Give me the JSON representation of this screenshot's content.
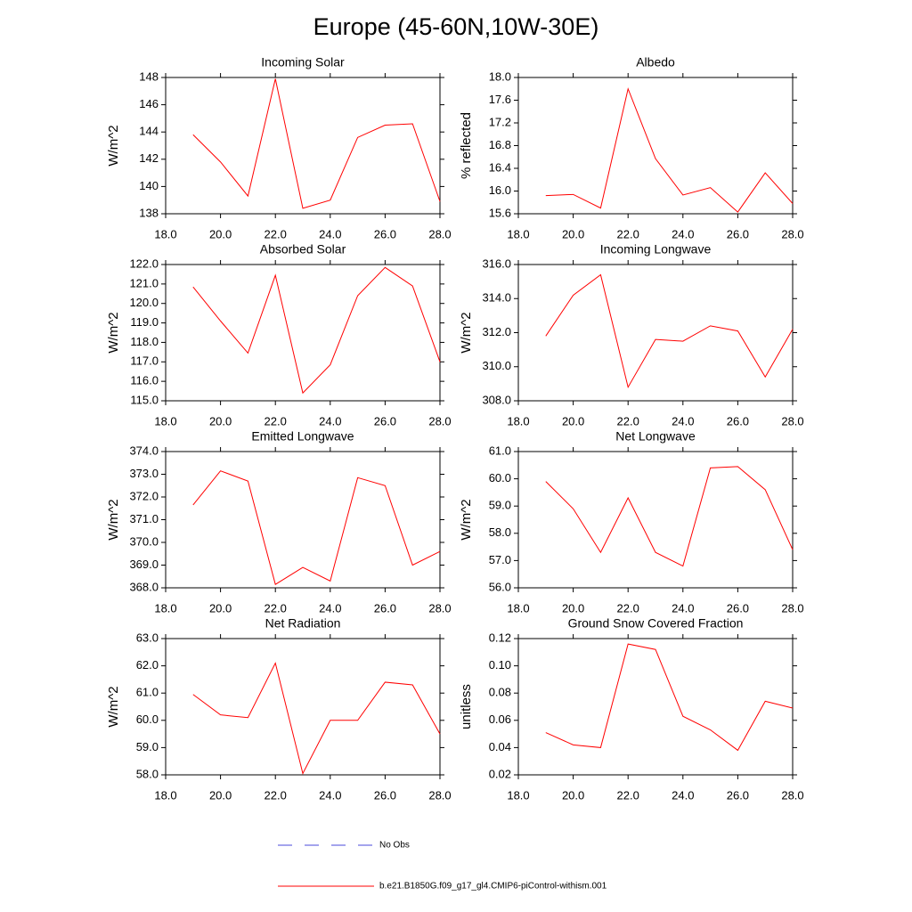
{
  "title": "Europe (45-60N,10W-30E)",
  "legend": [
    {
      "name": "No Obs",
      "color": "#4a4adb",
      "dash": true
    },
    {
      "name": "b.e21.B1850G.f09_g17_gl4.CMIP6-piControl-withism.001",
      "color": "#ff0000",
      "dash": false
    }
  ],
  "chart_data": [
    {
      "type": "line",
      "title": "Incoming Solar",
      "ylabel": "W/m^2",
      "x": [
        19,
        20,
        21,
        22,
        23,
        24,
        25,
        26,
        27,
        28
      ],
      "values": [
        143.8,
        141.8,
        139.3,
        147.9,
        138.4,
        139.0,
        143.6,
        144.5,
        144.6,
        138.9
      ],
      "color": "#ff0000",
      "xlim": [
        18,
        28
      ],
      "xticks": [
        {
          "value": 18,
          "label": "18.0"
        },
        {
          "value": 20,
          "label": "20.0"
        },
        {
          "value": 22,
          "label": "22.0"
        },
        {
          "value": 24,
          "label": "24.0"
        },
        {
          "value": 26,
          "label": "26.0"
        },
        {
          "value": 28,
          "label": "28.0"
        }
      ],
      "ylim": [
        138,
        148
      ],
      "yticks": [
        138,
        140,
        142,
        144,
        146,
        148
      ]
    },
    {
      "type": "line",
      "title": "Albedo",
      "ylabel": "% reflected",
      "x": [
        19,
        20,
        21,
        22,
        23,
        24,
        25,
        26,
        27,
        28
      ],
      "values": [
        15.92,
        15.94,
        15.7,
        17.8,
        16.57,
        15.93,
        16.06,
        15.63,
        16.32,
        15.78
      ],
      "color": "#ff0000",
      "xlim": [
        18,
        28
      ],
      "xticks": [
        {
          "value": 18,
          "label": "18.0"
        },
        {
          "value": 20,
          "label": "20.0"
        },
        {
          "value": 22,
          "label": "22.0"
        },
        {
          "value": 24,
          "label": "24.0"
        },
        {
          "value": 26,
          "label": "26.0"
        },
        {
          "value": 28,
          "label": "28.0"
        }
      ],
      "ylim": [
        15.6,
        18.0
      ],
      "yticks": [
        15.6,
        {
          "value": 16,
          "label": "16.0"
        },
        16.4,
        16.8,
        17.2,
        17.6,
        {
          "value": 18,
          "label": "18.0"
        }
      ]
    },
    {
      "type": "line",
      "title": "Absorbed Solar",
      "ylabel": "W/m^2",
      "x": [
        19,
        20,
        21,
        22,
        23,
        24,
        25,
        26,
        27,
        28
      ],
      "values": [
        120.85,
        119.1,
        117.45,
        121.45,
        115.4,
        116.85,
        120.4,
        121.85,
        120.9,
        117.0
      ],
      "color": "#ff0000",
      "xlim": [
        18,
        28
      ],
      "xticks": [
        {
          "value": 18,
          "label": "18.0"
        },
        {
          "value": 20,
          "label": "20.0"
        },
        {
          "value": 22,
          "label": "22.0"
        },
        {
          "value": 24,
          "label": "24.0"
        },
        {
          "value": 26,
          "label": "26.0"
        },
        {
          "value": 28,
          "label": "28.0"
        }
      ],
      "ylim": [
        115,
        122
      ],
      "yticks": [
        {
          "value": 115,
          "label": "115.0"
        },
        {
          "value": 116,
          "label": "116.0"
        },
        {
          "value": 117,
          "label": "117.0"
        },
        {
          "value": 118,
          "label": "118.0"
        },
        {
          "value": 119,
          "label": "119.0"
        },
        {
          "value": 120,
          "label": "120.0"
        },
        {
          "value": 121,
          "label": "121.0"
        },
        {
          "value": 122,
          "label": "122.0"
        }
      ]
    },
    {
      "type": "line",
      "title": "Incoming Longwave",
      "ylabel": "W/m^2",
      "x": [
        19,
        20,
        21,
        22,
        23,
        24,
        25,
        26,
        27,
        28
      ],
      "values": [
        311.8,
        314.2,
        315.4,
        308.8,
        311.6,
        311.5,
        312.4,
        312.1,
        309.4,
        312.2
      ],
      "color": "#ff0000",
      "xlim": [
        18,
        28
      ],
      "xticks": [
        {
          "value": 18,
          "label": "18.0"
        },
        {
          "value": 20,
          "label": "20.0"
        },
        {
          "value": 22,
          "label": "22.0"
        },
        {
          "value": 24,
          "label": "24.0"
        },
        {
          "value": 26,
          "label": "26.0"
        },
        {
          "value": 28,
          "label": "28.0"
        }
      ],
      "ylim": [
        308,
        316
      ],
      "yticks": [
        {
          "value": 308,
          "label": "308.0"
        },
        {
          "value": 310,
          "label": "310.0"
        },
        {
          "value": 312,
          "label": "312.0"
        },
        {
          "value": 314,
          "label": "314.0"
        },
        {
          "value": 316,
          "label": "316.0"
        }
      ]
    },
    {
      "type": "line",
      "title": "Emitted Longwave",
      "ylabel": "W/m^2",
      "x": [
        19,
        20,
        21,
        22,
        23,
        24,
        25,
        26,
        27,
        28
      ],
      "values": [
        371.65,
        373.15,
        372.7,
        368.15,
        368.9,
        368.3,
        372.85,
        372.5,
        369.0,
        369.6
      ],
      "color": "#ff0000",
      "xlim": [
        18,
        28
      ],
      "xticks": [
        {
          "value": 18,
          "label": "18.0"
        },
        {
          "value": 20,
          "label": "20.0"
        },
        {
          "value": 22,
          "label": "22.0"
        },
        {
          "value": 24,
          "label": "24.0"
        },
        {
          "value": 26,
          "label": "26.0"
        },
        {
          "value": 28,
          "label": "28.0"
        }
      ],
      "ylim": [
        368,
        374
      ],
      "yticks": [
        {
          "value": 368,
          "label": "368.0"
        },
        {
          "value": 369,
          "label": "369.0"
        },
        {
          "value": 370,
          "label": "370.0"
        },
        {
          "value": 371,
          "label": "371.0"
        },
        {
          "value": 372,
          "label": "372.0"
        },
        {
          "value": 373,
          "label": "373.0"
        },
        {
          "value": 374,
          "label": "374.0"
        }
      ]
    },
    {
      "type": "line",
      "title": "Net Longwave",
      "ylabel": "W/m^2",
      "x": [
        19,
        20,
        21,
        22,
        23,
        24,
        25,
        26,
        27,
        28
      ],
      "values": [
        59.9,
        58.9,
        57.3,
        59.3,
        57.3,
        56.8,
        60.4,
        60.45,
        59.6,
        57.4
      ],
      "color": "#ff0000",
      "xlim": [
        18,
        28
      ],
      "xticks": [
        {
          "value": 18,
          "label": "18.0"
        },
        {
          "value": 20,
          "label": "20.0"
        },
        {
          "value": 22,
          "label": "22.0"
        },
        {
          "value": 24,
          "label": "24.0"
        },
        {
          "value": 26,
          "label": "26.0"
        },
        {
          "value": 28,
          "label": "28.0"
        }
      ],
      "ylim": [
        56,
        61
      ],
      "yticks": [
        {
          "value": 56,
          "label": "56.0"
        },
        {
          "value": 57,
          "label": "57.0"
        },
        {
          "value": 58,
          "label": "58.0"
        },
        {
          "value": 59,
          "label": "59.0"
        },
        {
          "value": 60,
          "label": "60.0"
        },
        {
          "value": 61,
          "label": "61.0"
        }
      ]
    },
    {
      "type": "line",
      "title": "Net Radiation",
      "ylabel": "W/m^2",
      "x": [
        19,
        20,
        21,
        22,
        23,
        24,
        25,
        26,
        27,
        28
      ],
      "values": [
        60.95,
        60.2,
        60.1,
        62.1,
        58.05,
        60.0,
        60.0,
        61.4,
        61.3,
        59.5
      ],
      "color": "#ff0000",
      "xlim": [
        18,
        28
      ],
      "xticks": [
        {
          "value": 18,
          "label": "18.0"
        },
        {
          "value": 20,
          "label": "20.0"
        },
        {
          "value": 22,
          "label": "22.0"
        },
        {
          "value": 24,
          "label": "24.0"
        },
        {
          "value": 26,
          "label": "26.0"
        },
        {
          "value": 28,
          "label": "28.0"
        }
      ],
      "ylim": [
        58,
        63
      ],
      "yticks": [
        {
          "value": 58,
          "label": "58.0"
        },
        {
          "value": 59,
          "label": "59.0"
        },
        {
          "value": 60,
          "label": "60.0"
        },
        {
          "value": 61,
          "label": "61.0"
        },
        {
          "value": 62,
          "label": "62.0"
        },
        {
          "value": 63,
          "label": "63.0"
        }
      ]
    },
    {
      "type": "line",
      "title": "Ground Snow Covered Fraction",
      "ylabel": "unitless",
      "x": [
        19,
        20,
        21,
        22,
        23,
        24,
        25,
        26,
        27,
        28
      ],
      "values": [
        0.051,
        0.042,
        0.04,
        0.116,
        0.112,
        0.063,
        0.053,
        0.038,
        0.074,
        0.069
      ],
      "color": "#ff0000",
      "xlim": [
        18,
        28
      ],
      "xticks": [
        {
          "value": 18,
          "label": "18.0"
        },
        {
          "value": 20,
          "label": "20.0"
        },
        {
          "value": 22,
          "label": "22.0"
        },
        {
          "value": 24,
          "label": "24.0"
        },
        {
          "value": 26,
          "label": "26.0"
        },
        {
          "value": 28,
          "label": "28.0"
        }
      ],
      "ylim": [
        0.02,
        0.12
      ],
      "yticks": [
        0.02,
        0.04,
        0.06,
        0.08,
        {
          "value": 0.1,
          "label": "0.10"
        },
        0.12
      ]
    }
  ]
}
